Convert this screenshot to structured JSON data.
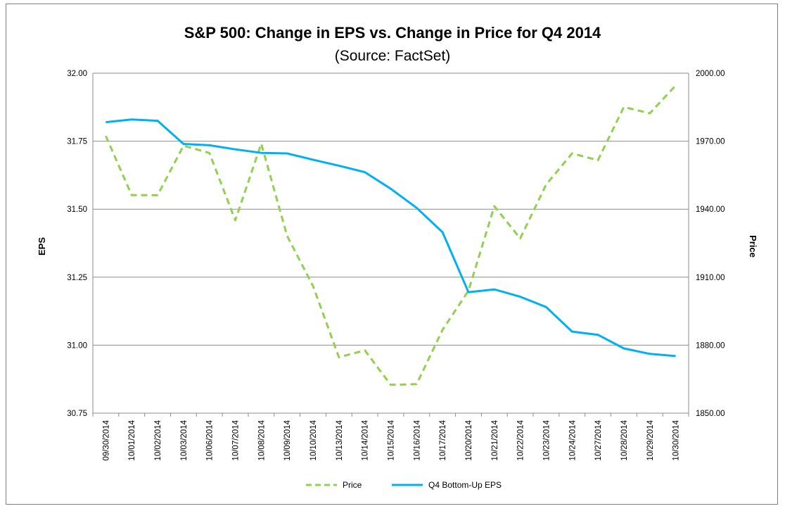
{
  "chart_data": {
    "type": "line",
    "title": "S&P 500: Change in EPS vs. Change in Price for Q4 2014",
    "subtitle": "(Source: FactSet)",
    "ylabel_left": "EPS",
    "ylabel_right": "Price",
    "ylim_left": [
      30.75,
      32.0
    ],
    "ylim_right": [
      1850,
      2000
    ],
    "yticks_left": [
      "32.00",
      "31.75",
      "31.50",
      "31.25",
      "31.00",
      "30.75"
    ],
    "yticks_right": [
      "2000.00",
      "1970.00",
      "1940.00",
      "1910.00",
      "1880.00",
      "1850.00"
    ],
    "grid": true,
    "legend_position": "bottom",
    "categories": [
      "09/30/2014",
      "10/01/2014",
      "10/02/2014",
      "10/03/2014",
      "10/06/2014",
      "10/07/2014",
      "10/08/2014",
      "10/09/2014",
      "10/10/2014",
      "10/13/2014",
      "10/14/2014",
      "10/15/2014",
      "10/16/2014",
      "10/17/2014",
      "10/20/2014",
      "10/21/2014",
      "10/22/2014",
      "10/23/2014",
      "10/24/2014",
      "10/27/2014",
      "10/28/2014",
      "10/29/2014",
      "10/30/2014"
    ],
    "series": [
      {
        "name": "Price",
        "axis": "right",
        "color": "#92D050",
        "dash": true,
        "values": [
          1972.3,
          1946.2,
          1946.2,
          1968.0,
          1964.8,
          1935.1,
          1968.9,
          1928.2,
          1906.1,
          1874.7,
          1877.7,
          1862.5,
          1862.8,
          1886.8,
          1904.0,
          1941.3,
          1927.1,
          1950.9,
          1964.6,
          1961.6,
          1985.1,
          1982.3,
          1994.6
        ]
      },
      {
        "name": "Q4 Bottom-Up EPS",
        "axis": "left",
        "color": "#00B0F0",
        "dash": false,
        "values": [
          31.82,
          31.83,
          31.825,
          31.74,
          31.735,
          31.72,
          31.707,
          31.705,
          31.682,
          31.66,
          31.636,
          31.575,
          31.505,
          31.415,
          31.195,
          31.205,
          31.178,
          31.14,
          31.05,
          31.038,
          30.988,
          30.968,
          30.96
        ]
      }
    ]
  }
}
